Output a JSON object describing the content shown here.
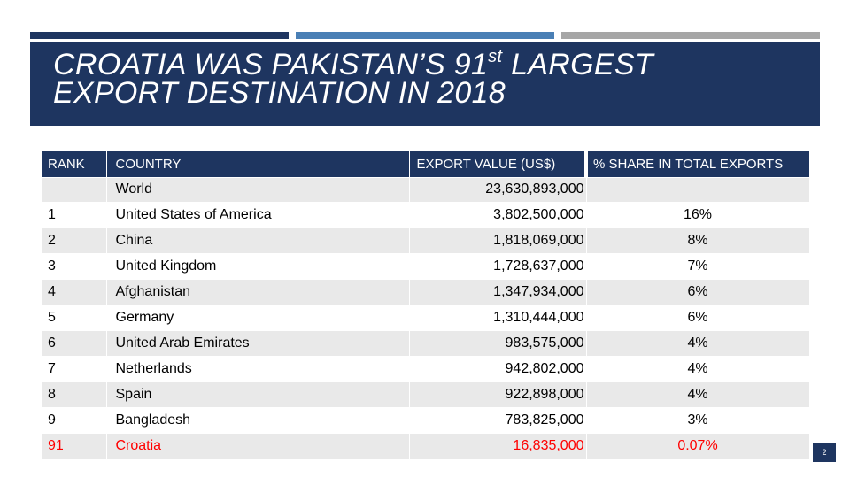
{
  "title": {
    "line1_pre": "CROATIA WAS PAKISTAN’S 91",
    "superscript": "st",
    "line1_post": " LARGEST",
    "line2": "EXPORT DESTINATION IN 2018"
  },
  "table": {
    "headers": {
      "rank": "RANK",
      "country": "COUNTRY",
      "value": "EXPORT  VALUE (US$)",
      "share": "% SHARE IN TOTAL EXPORTS"
    },
    "world": {
      "rank": "",
      "country": "World",
      "value": "23,630,893,000",
      "share": ""
    },
    "rows": [
      {
        "rank": "1",
        "country": "United States of America",
        "value": "3,802,500,000",
        "share": "16%"
      },
      {
        "rank": "2",
        "country": "China",
        "value": "1,818,069,000",
        "share": "8%"
      },
      {
        "rank": "3",
        "country": "United Kingdom",
        "value": "1,728,637,000",
        "share": "7%"
      },
      {
        "rank": "4",
        "country": "Afghanistan",
        "value": "1,347,934,000",
        "share": "6%"
      },
      {
        "rank": "5",
        "country": "Germany",
        "value": "1,310,444,000",
        "share": "6%"
      },
      {
        "rank": "6",
        "country": "United Arab Emirates",
        "value": "983,575,000",
        "share": "4%"
      },
      {
        "rank": "7",
        "country": "Netherlands",
        "value": "942,802,000",
        "share": "4%"
      },
      {
        "rank": "8",
        "country": "Spain",
        "value": "922,898,000",
        "share": "4%"
      },
      {
        "rank": "9",
        "country": "Bangladesh",
        "value": "783,825,000",
        "share": "3%"
      },
      {
        "rank": "91",
        "country": "Croatia",
        "value": "16,835,000",
        "share": "0.07%"
      }
    ]
  },
  "page_number": "2",
  "colors": {
    "navy": "#1e3560",
    "accent_blue": "#4a7fb5",
    "gray": "#a6a6a6",
    "highlight": "#ff0000",
    "band": "#e9e9e9"
  }
}
